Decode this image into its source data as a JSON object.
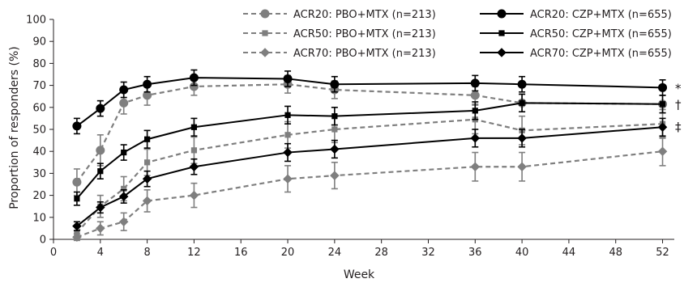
{
  "chart_data": {
    "type": "line",
    "xlabel": "Week",
    "ylabel": "Proportion of responders (%)",
    "xlim": [
      0,
      53
    ],
    "ylim": [
      0,
      100
    ],
    "xticks": [
      0,
      4,
      8,
      12,
      16,
      20,
      24,
      28,
      32,
      36,
      40,
      44,
      48,
      52
    ],
    "yticks": [
      0,
      10,
      20,
      30,
      40,
      50,
      60,
      70,
      80,
      90,
      100
    ],
    "legend_position": "top",
    "colors": {
      "pbo": "#7f7f7f",
      "czp": "#000000"
    },
    "series": [
      {
        "name": "ACR20: PBO+MTX (n=213)",
        "group": "pbo",
        "marker": "circle",
        "dashed": true,
        "x": [
          2,
          4,
          6,
          8,
          12,
          20,
          24,
          36,
          40,
          52
        ],
        "y": [
          26,
          40.5,
          62,
          65.5,
          69.5,
          70.5,
          68,
          65.5,
          62,
          61.5
        ],
        "err": [
          6,
          7,
          5,
          4.5,
          4,
          4,
          4,
          4,
          4,
          4
        ]
      },
      {
        "name": "ACR20: CZP+MTX (n=655)",
        "group": "czp",
        "marker": "circle",
        "dashed": false,
        "x": [
          2,
          4,
          6,
          8,
          12,
          20,
          24,
          36,
          40,
          52
        ],
        "y": [
          51.5,
          59.5,
          68,
          70.5,
          73.5,
          73,
          70.5,
          71,
          70.5,
          69
        ],
        "err": [
          3.5,
          3.5,
          3.5,
          3.5,
          3.5,
          3.5,
          3.5,
          3.5,
          3.5,
          3.5
        ]
      },
      {
        "name": "ACR50: PBO+MTX (n=213)",
        "group": "pbo",
        "marker": "square",
        "dashed": true,
        "x": [
          2,
          4,
          6,
          8,
          12,
          20,
          24,
          36,
          40,
          52
        ],
        "y": [
          3,
          15,
          23,
          35,
          40.5,
          47.5,
          50,
          54.5,
          49.5,
          52.5
        ],
        "err": [
          3,
          5,
          5.5,
          6,
          6,
          6,
          6,
          6.5,
          6.5,
          6.5
        ]
      },
      {
        "name": "ACR50: CZP+MTX (n=655)",
        "group": "czp",
        "marker": "square",
        "dashed": false,
        "x": [
          2,
          4,
          6,
          8,
          12,
          20,
          24,
          36,
          40,
          52
        ],
        "y": [
          18.5,
          31,
          39.5,
          45.5,
          51,
          56.5,
          56,
          58.5,
          62,
          61.5
        ],
        "err": [
          3,
          3.5,
          3.5,
          4,
          4,
          4,
          4,
          4,
          4,
          4
        ]
      },
      {
        "name": "ACR70: PBO+MTX (n=213)",
        "group": "pbo",
        "marker": "diamond",
        "dashed": true,
        "x": [
          2,
          4,
          6,
          8,
          12,
          20,
          24,
          36,
          40,
          52
        ],
        "y": [
          1,
          5,
          8,
          17.5,
          20,
          27.5,
          29,
          33,
          33,
          40
        ],
        "err": [
          1.5,
          3,
          4,
          5,
          5.5,
          6,
          6,
          6.5,
          6.5,
          6.5
        ]
      },
      {
        "name": "ACR70: CZP+MTX (n=655)",
        "group": "czp",
        "marker": "diamond",
        "dashed": false,
        "x": [
          2,
          4,
          6,
          8,
          12,
          20,
          24,
          36,
          40,
          52
        ],
        "y": [
          6,
          14.5,
          19.5,
          27.5,
          33,
          39.5,
          41,
          46,
          46,
          51
        ],
        "err": [
          2,
          2.5,
          3,
          3.5,
          3.5,
          4,
          4,
          4,
          4,
          4
        ]
      }
    ],
    "significance_marks": [
      {
        "text": "*",
        "y": 69
      },
      {
        "text": "†",
        "y": 61.5
      },
      {
        "text": "‡",
        "y": 51.5
      }
    ]
  }
}
